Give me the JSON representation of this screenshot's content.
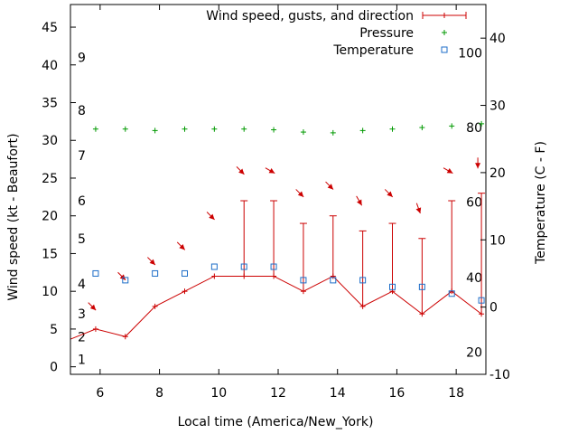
{
  "chart_data": {
    "type": "line",
    "xlabel": "Local time (America/New_York)",
    "ylabel": "Wind speed (kt - Beaufort)",
    "y2label": "Temperature (C - F)",
    "xlim": [
      5,
      19
    ],
    "ylim": [
      -1,
      48
    ],
    "y2lim": [
      -10,
      45
    ],
    "x_ticks": [
      "6",
      "8",
      "10",
      "12",
      "14",
      "16",
      "18"
    ],
    "y_ticks": [
      "0",
      "5",
      "10",
      "15",
      "20",
      "25",
      "30",
      "35",
      "40",
      "45"
    ],
    "y2_ticks": [
      "-10",
      "0",
      "10",
      "20",
      "30",
      "40"
    ],
    "beaufort_labels": [
      {
        "text": "1",
        "y": 1
      },
      {
        "text": "2",
        "y": 4
      },
      {
        "text": "3",
        "y": 7
      },
      {
        "text": "4",
        "y": 11
      },
      {
        "text": "5",
        "y": 17
      },
      {
        "text": "6",
        "y": 22
      },
      {
        "text": "7",
        "y": 28
      },
      {
        "text": "8",
        "y": 34
      },
      {
        "text": "9",
        "y": 41
      }
    ],
    "fahrenheit_labels": [
      {
        "text": "20",
        "c": -6.7
      },
      {
        "text": "40",
        "c": 4.4
      },
      {
        "text": "60",
        "c": 15.6
      },
      {
        "text": "80",
        "c": 26.7
      },
      {
        "text": "100",
        "c": 37.8
      }
    ],
    "legend_position": "top-right",
    "legend": [
      {
        "label": "Wind speed, gusts, and direction",
        "color": "#cc0000"
      },
      {
        "label": "Pressure",
        "color": "#009900"
      },
      {
        "label": "Temperature",
        "color": "#1e6ec8"
      }
    ],
    "wind": {
      "x": [
        4.9,
        5.85,
        6.85,
        7.85,
        8.85,
        9.85,
        10.85,
        11.85,
        12.85,
        13.85,
        14.85,
        15.85,
        16.85,
        17.85,
        18.85
      ],
      "values": [
        3.5,
        5,
        4,
        8,
        10,
        12,
        12,
        12,
        10,
        12,
        8,
        10,
        7,
        10,
        7
      ],
      "gusts": [
        null,
        null,
        null,
        null,
        null,
        null,
        22,
        22,
        19,
        20,
        18,
        19,
        17,
        22,
        23
      ],
      "arrow_positions": [
        8.5,
        8,
        12,
        14,
        16,
        20,
        26,
        26,
        23,
        24,
        22,
        23,
        21,
        26,
        27
      ],
      "arrow_directions_deg": [
        315,
        315,
        315,
        315,
        315,
        315,
        315,
        300,
        315,
        315,
        330,
        315,
        340,
        300,
        360
      ]
    },
    "pressure": {
      "x": [
        5.85,
        6.85,
        7.85,
        8.85,
        9.85,
        10.85,
        11.85,
        12.85,
        13.85,
        14.85,
        15.85,
        16.85,
        17.85,
        18.85
      ],
      "values": [
        31.5,
        31.5,
        31.3,
        31.5,
        31.5,
        31.5,
        31.4,
        31.1,
        31.0,
        31.3,
        31.5,
        31.7,
        31.9,
        32.2
      ]
    },
    "temperature": {
      "x": [
        5.85,
        6.85,
        7.85,
        8.85,
        9.85,
        10.85,
        11.85,
        12.85,
        13.85,
        14.85,
        15.85,
        16.85,
        17.85,
        18.85
      ],
      "values": [
        5,
        4,
        5,
        5,
        6,
        6,
        6,
        4,
        4,
        4,
        3,
        3,
        2,
        1
      ]
    }
  }
}
